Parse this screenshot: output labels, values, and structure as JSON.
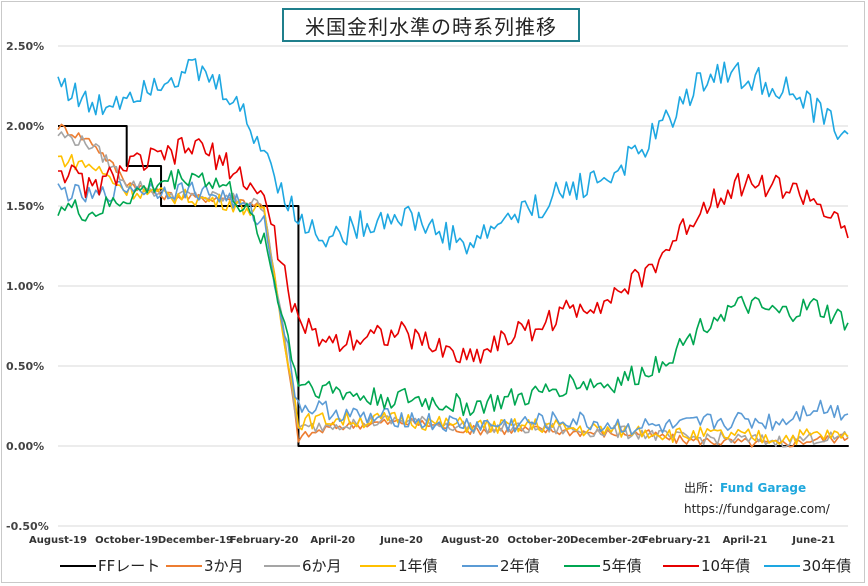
{
  "chart_data": {
    "type": "line",
    "title": "米国金利水準の時系列推移",
    "y_ticks": [
      "2.50%",
      "2.00%",
      "1.50%",
      "1.00%",
      "0.50%",
      "0.00%",
      "-0.50%"
    ],
    "y_tick_values": [
      2.5,
      2.0,
      1.5,
      1.0,
      0.5,
      0.0,
      -0.5
    ],
    "ylim": [
      -0.5,
      2.5
    ],
    "x_ticks": [
      "August-19",
      "October-19",
      "December-19",
      "February-20",
      "April-20",
      "June-20",
      "August-20",
      "October-20",
      "December-20",
      "February-21",
      "April-21",
      "June-21"
    ],
    "xlim": [
      "2019-08",
      "2021-07"
    ],
    "grid": "horizontal",
    "legend_position": "bottom",
    "x": [
      "2019-08",
      "2019-09",
      "2019-10",
      "2019-11",
      "2019-12",
      "2020-01",
      "2020-02",
      "2020-03",
      "2020-04",
      "2020-05",
      "2020-06",
      "2020-07",
      "2020-08",
      "2020-09",
      "2020-10",
      "2020-11",
      "2020-12",
      "2021-01",
      "2021-02",
      "2021-03",
      "2021-04",
      "2021-05",
      "2021-06",
      "2021-07"
    ],
    "series": [
      {
        "name": "FFレート",
        "color": "#000000",
        "step": true,
        "values": [
          2.0,
          2.0,
          1.75,
          1.5,
          1.5,
          1.5,
          1.5,
          0.0,
          0.0,
          0.0,
          0.0,
          0.0,
          0.0,
          0.0,
          0.0,
          0.0,
          0.0,
          0.0,
          0.0,
          0.0,
          0.0,
          0.0,
          0.0,
          0.0
        ]
      },
      {
        "name": "3か月",
        "color": "#ed7d31",
        "values": [
          2.0,
          1.9,
          1.65,
          1.57,
          1.55,
          1.55,
          1.5,
          0.05,
          0.12,
          0.14,
          0.15,
          0.13,
          0.1,
          0.1,
          0.1,
          0.09,
          0.08,
          0.08,
          0.04,
          0.03,
          0.02,
          0.01,
          0.04,
          0.05
        ]
      },
      {
        "name": "6か月",
        "color": "#a5a5a5",
        "values": [
          1.95,
          1.88,
          1.65,
          1.58,
          1.56,
          1.55,
          1.5,
          0.1,
          0.14,
          0.15,
          0.16,
          0.14,
          0.12,
          0.11,
          0.11,
          0.1,
          0.09,
          0.08,
          0.05,
          0.05,
          0.04,
          0.03,
          0.05,
          0.05
        ]
      },
      {
        "name": "1年債",
        "color": "#ffc000",
        "values": [
          1.8,
          1.75,
          1.6,
          1.57,
          1.55,
          1.52,
          1.45,
          0.15,
          0.17,
          0.16,
          0.17,
          0.14,
          0.13,
          0.12,
          0.13,
          0.11,
          0.1,
          0.1,
          0.07,
          0.07,
          0.06,
          0.05,
          0.07,
          0.06
        ]
      },
      {
        "name": "2年債",
        "color": "#5b9bd5",
        "values": [
          1.6,
          1.55,
          1.62,
          1.6,
          1.6,
          1.55,
          1.4,
          0.25,
          0.22,
          0.17,
          0.18,
          0.14,
          0.13,
          0.13,
          0.15,
          0.16,
          0.13,
          0.12,
          0.11,
          0.15,
          0.16,
          0.15,
          0.25,
          0.2
        ]
      },
      {
        "name": "5年債",
        "color": "#00a651",
        "values": [
          1.5,
          1.45,
          1.55,
          1.65,
          1.7,
          1.6,
          1.3,
          0.4,
          0.35,
          0.3,
          0.3,
          0.27,
          0.25,
          0.28,
          0.32,
          0.4,
          0.38,
          0.45,
          0.6,
          0.8,
          0.88,
          0.82,
          0.87,
          0.77
        ]
      },
      {
        "name": "10年債",
        "color": "#e60000",
        "values": [
          1.75,
          1.6,
          1.75,
          1.8,
          1.88,
          1.75,
          1.55,
          0.75,
          0.65,
          0.7,
          0.7,
          0.62,
          0.55,
          0.68,
          0.75,
          0.86,
          0.92,
          1.05,
          1.3,
          1.55,
          1.65,
          1.62,
          1.55,
          1.3
        ]
      },
      {
        "name": "30年債",
        "color": "#1ea7e1",
        "values": [
          2.3,
          2.1,
          2.2,
          2.3,
          2.35,
          2.2,
          1.85,
          1.4,
          1.3,
          1.4,
          1.45,
          1.35,
          1.25,
          1.42,
          1.5,
          1.62,
          1.68,
          1.85,
          2.1,
          2.35,
          2.3,
          2.25,
          2.1,
          1.95
        ]
      }
    ]
  },
  "source": {
    "label": "出所：",
    "brand": "Fund Garage",
    "url": "https://fundgarage.com/"
  }
}
